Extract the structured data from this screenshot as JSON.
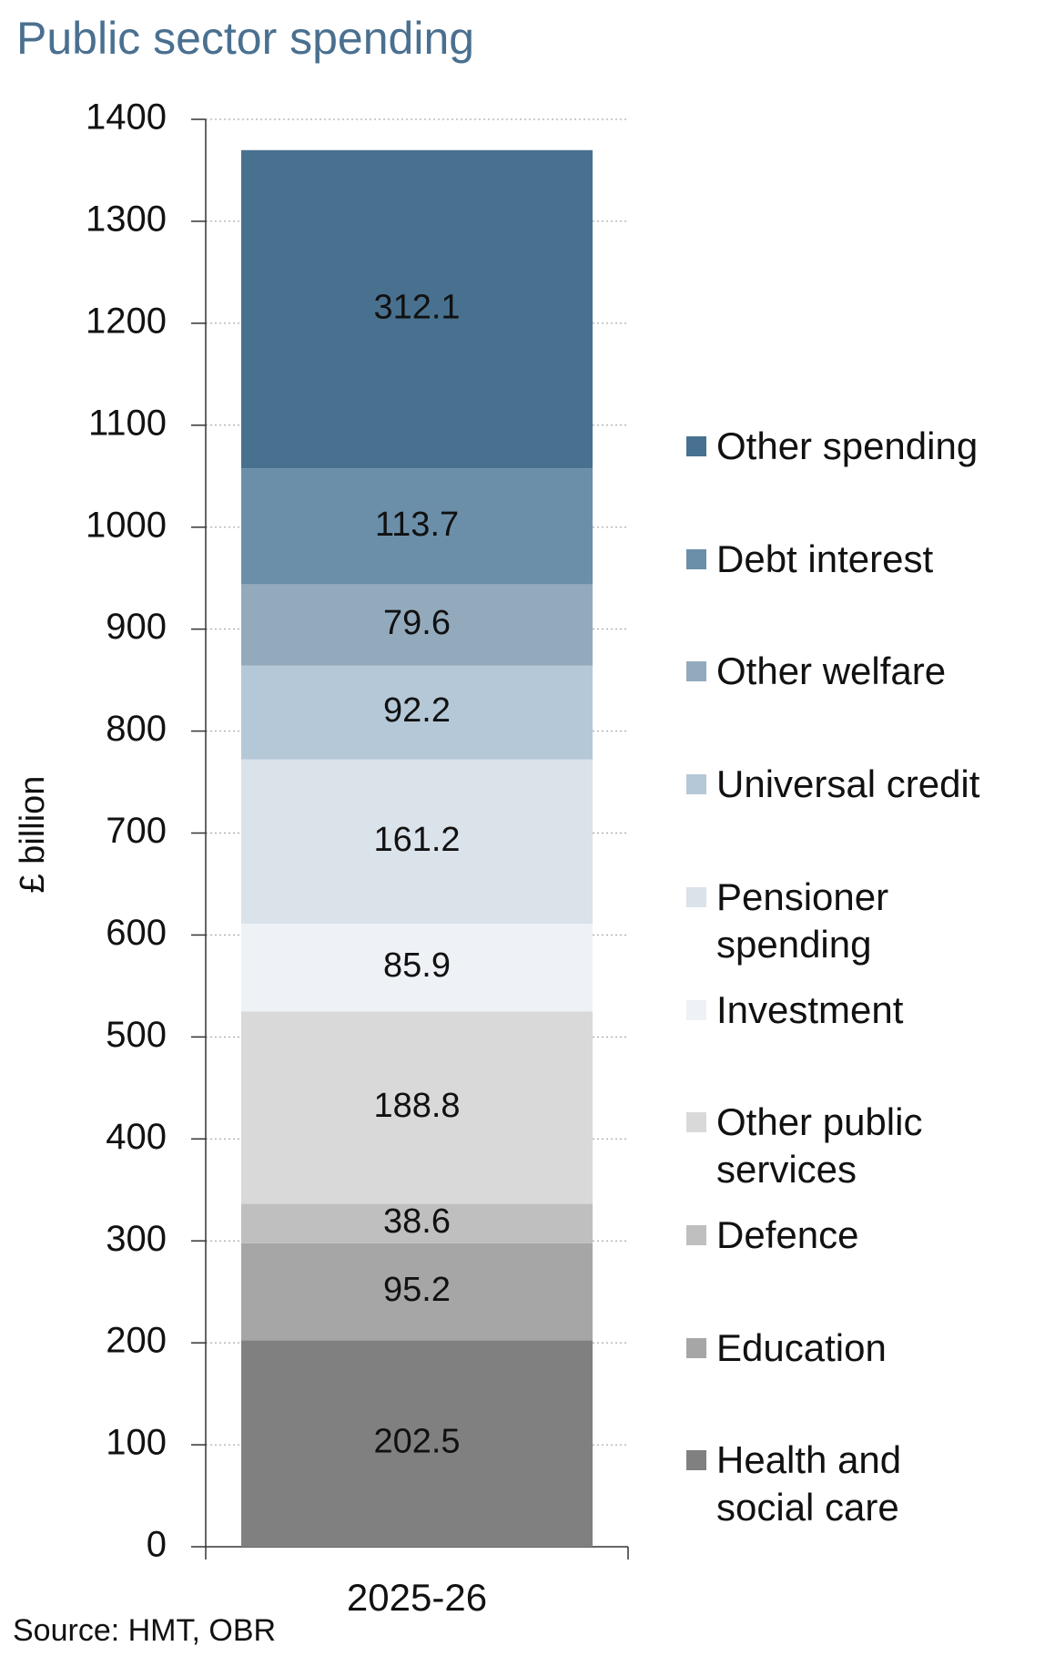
{
  "chart_data": {
    "type": "stacked-bar",
    "title": "Public sector spending",
    "y_label": "£ billion",
    "source": "Source: HMT, OBR",
    "categories": [
      "2025-26"
    ],
    "series": [
      {
        "name": "Health and social care",
        "color": "#808080",
        "values": [
          202.5
        ]
      },
      {
        "name": "Education",
        "color": "#a6a6a6",
        "values": [
          95.2
        ]
      },
      {
        "name": "Defence",
        "color": "#bfbfbf",
        "values": [
          38.6
        ]
      },
      {
        "name": "Other public services",
        "color": "#d9d9d9",
        "values": [
          188.8
        ]
      },
      {
        "name": "Investment",
        "color": "#eef2f6",
        "values": [
          85.9
        ]
      },
      {
        "name": "Pensioner spending",
        "color": "#dae2ea",
        "values": [
          161.2
        ]
      },
      {
        "name": "Universal credit",
        "color": "#b5c8d7",
        "values": [
          92.2
        ]
      },
      {
        "name": "Other welfare",
        "color": "#93aabd",
        "values": [
          79.6
        ]
      },
      {
        "name": "Debt interest",
        "color": "#6b8fa9",
        "values": [
          113.7
        ]
      },
      {
        "name": "Other spending",
        "color": "#48718f",
        "values": [
          312.1
        ]
      }
    ],
    "ylim": [
      0,
      1400
    ],
    "yticks": [
      0,
      100,
      200,
      300,
      400,
      500,
      600,
      700,
      800,
      900,
      1000,
      1100,
      1200,
      1300,
      1400
    ],
    "grid": true,
    "legend": "right"
  }
}
